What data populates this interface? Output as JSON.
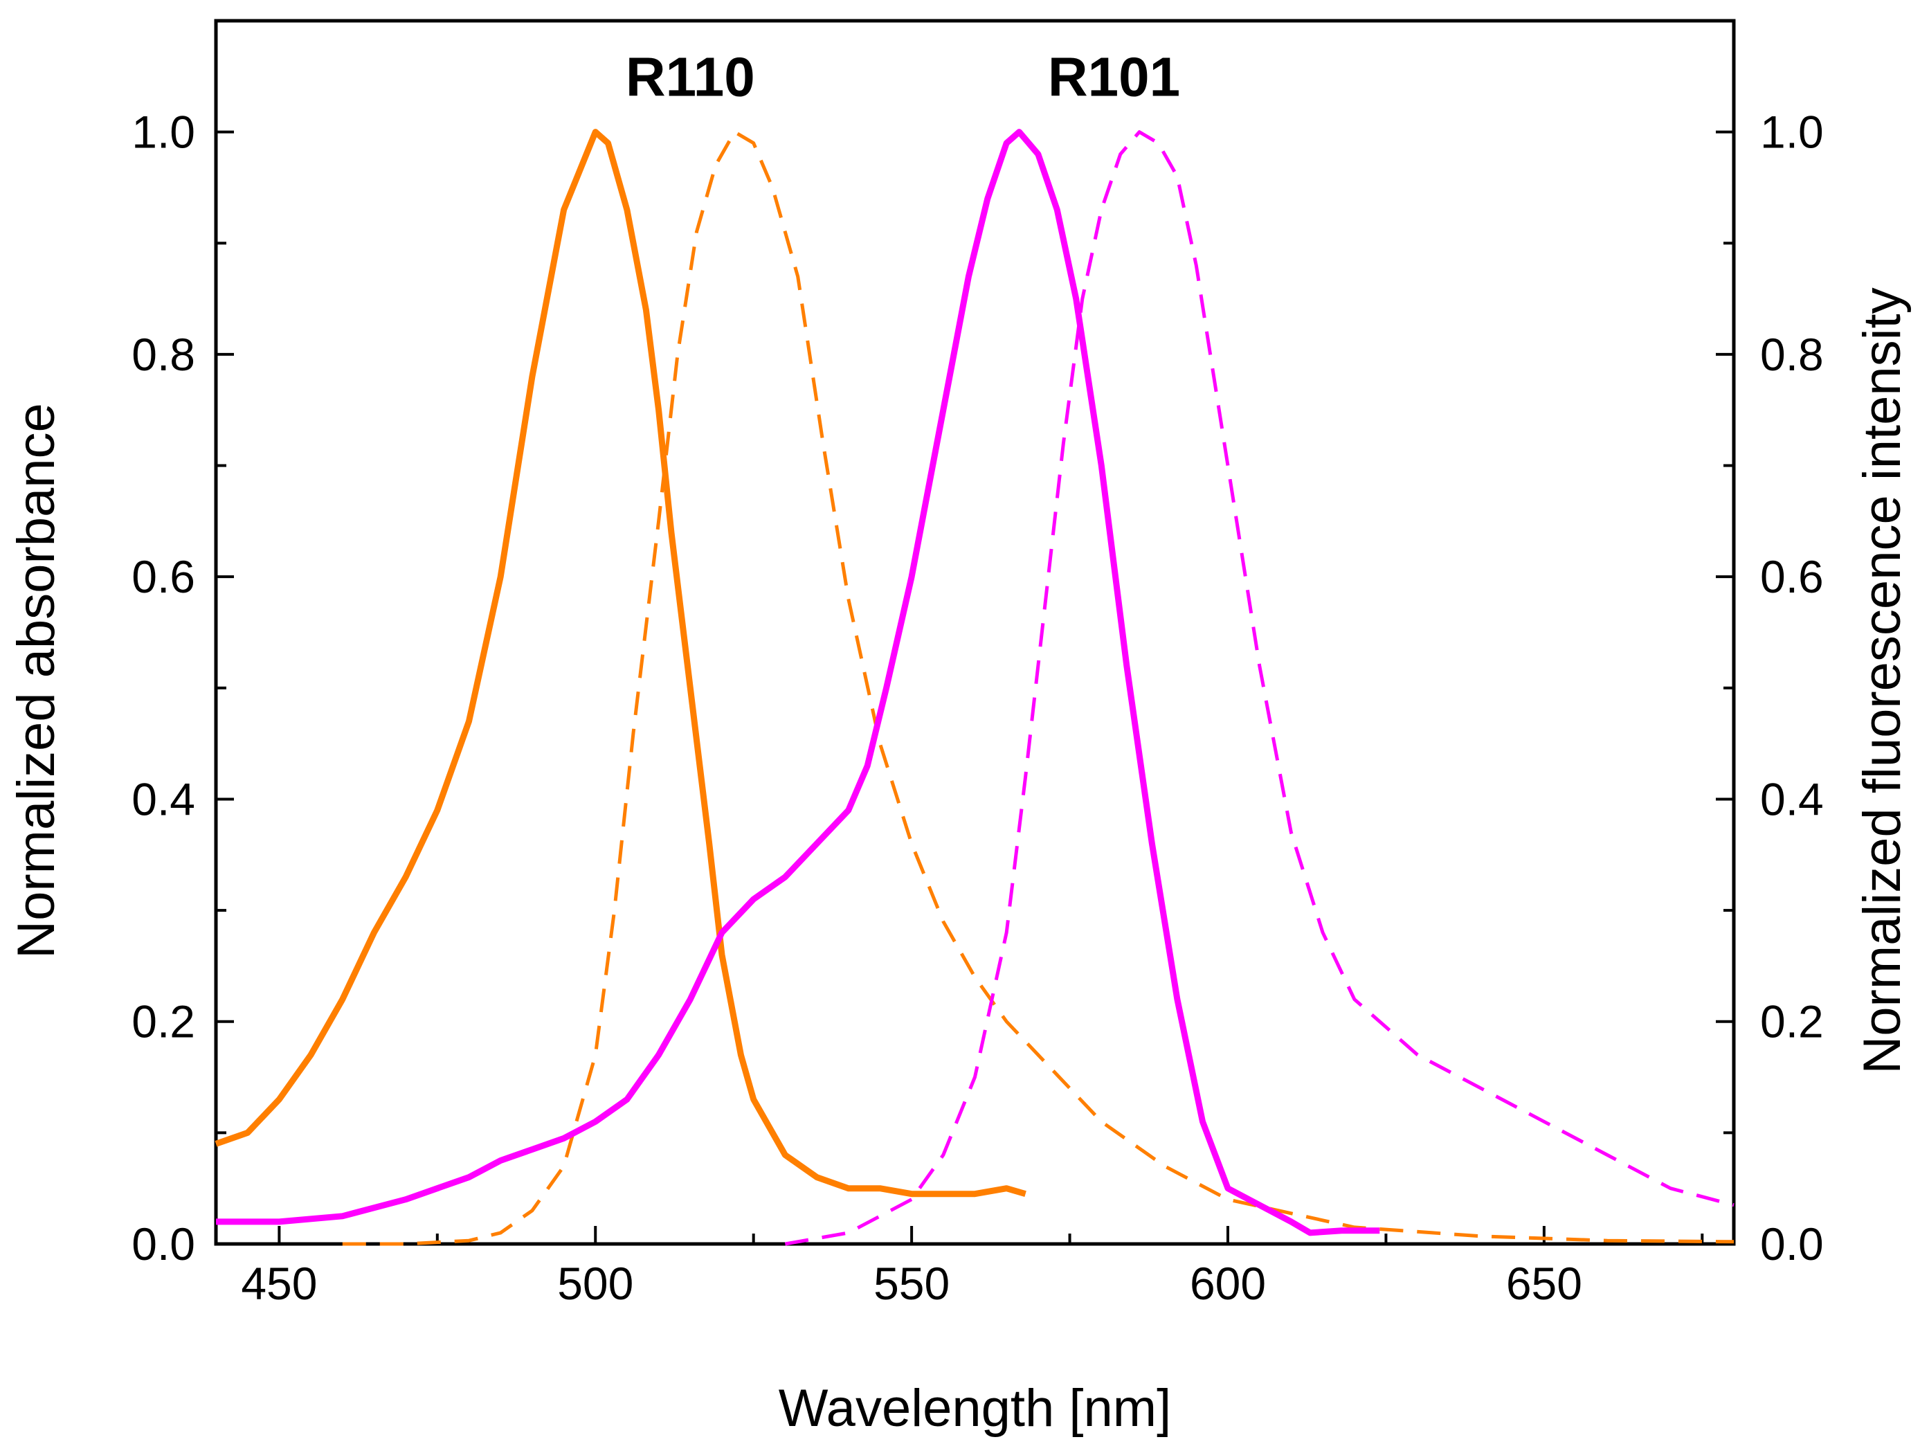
{
  "chart_data": {
    "type": "line",
    "xlabel": "Wavelength [nm]",
    "ylabel_left": "Normalized absorbance",
    "ylabel_right": "Normalized fluorescence intensity",
    "xlim": [
      440,
      680
    ],
    "ylim": [
      0,
      1.1
    ],
    "xticks": [
      450,
      500,
      550,
      600,
      650
    ],
    "xtick_labels": [
      "450",
      "500",
      "550",
      "600",
      "650"
    ],
    "yticks": [
      0.0,
      0.2,
      0.4,
      0.6,
      0.8,
      1.0
    ],
    "ytick_labels": [
      "0.0",
      "0.2",
      "0.4",
      "0.6",
      "0.8",
      "1.0"
    ],
    "y2tick_labels": [
      "0.0",
      "0.2",
      "0.4",
      "0.6",
      "0.8",
      "1.0"
    ],
    "annotations": [
      {
        "text": "R110",
        "x": 515,
        "y": 1.05
      },
      {
        "text": "R101",
        "x": 582,
        "y": 1.05
      }
    ],
    "series": [
      {
        "name": "R110 absorbance",
        "color": "#ff7f00",
        "style": "solid",
        "x": [
          440,
          445,
          450,
          455,
          460,
          465,
          470,
          475,
          480,
          485,
          490,
          495,
          500,
          502,
          505,
          508,
          510,
          512,
          515,
          518,
          520,
          523,
          525,
          530,
          535,
          540,
          545,
          550,
          555,
          560,
          565,
          568
        ],
        "y": [
          0.09,
          0.1,
          0.13,
          0.17,
          0.22,
          0.28,
          0.33,
          0.39,
          0.47,
          0.6,
          0.78,
          0.93,
          1.0,
          0.99,
          0.93,
          0.84,
          0.75,
          0.64,
          0.5,
          0.36,
          0.26,
          0.17,
          0.13,
          0.08,
          0.06,
          0.05,
          0.05,
          0.045,
          0.045,
          0.045,
          0.05,
          0.045
        ]
      },
      {
        "name": "R110 fluorescence",
        "color": "#ff7f00",
        "style": "dashed",
        "x": [
          460,
          470,
          480,
          485,
          490,
          495,
          500,
          503,
          506,
          510,
          513,
          516,
          519,
          522,
          525,
          528,
          532,
          536,
          540,
          545,
          550,
          555,
          560,
          565,
          570,
          580,
          590,
          600,
          620,
          640,
          660,
          680
        ],
        "y": [
          0.0,
          0.0,
          0.003,
          0.01,
          0.03,
          0.07,
          0.17,
          0.3,
          0.46,
          0.65,
          0.8,
          0.91,
          0.97,
          1.0,
          0.99,
          0.95,
          0.87,
          0.72,
          0.58,
          0.45,
          0.36,
          0.29,
          0.24,
          0.2,
          0.17,
          0.11,
          0.07,
          0.04,
          0.015,
          0.007,
          0.003,
          0.002
        ]
      },
      {
        "name": "R101 absorbance",
        "color": "#ff00ff",
        "style": "solid",
        "x": [
          440,
          450,
          460,
          470,
          480,
          485,
          490,
          495,
          500,
          505,
          510,
          515,
          520,
          525,
          530,
          535,
          540,
          543,
          546,
          550,
          553,
          556,
          559,
          562,
          565,
          567,
          570,
          573,
          576,
          580,
          584,
          588,
          592,
          596,
          600,
          605,
          610,
          613,
          618,
          624
        ],
        "y": [
          0.02,
          0.02,
          0.025,
          0.04,
          0.06,
          0.075,
          0.085,
          0.095,
          0.11,
          0.13,
          0.17,
          0.22,
          0.28,
          0.31,
          0.33,
          0.36,
          0.39,
          0.43,
          0.5,
          0.6,
          0.69,
          0.78,
          0.87,
          0.94,
          0.99,
          1.0,
          0.98,
          0.93,
          0.85,
          0.7,
          0.52,
          0.36,
          0.22,
          0.11,
          0.05,
          0.035,
          0.02,
          0.01,
          0.012,
          0.012
        ]
      },
      {
        "name": "R101 fluorescence",
        "color": "#ff00ff",
        "style": "dashed",
        "x": [
          530,
          540,
          550,
          555,
          560,
          565,
          568,
          571,
          574,
          577,
          580,
          583,
          586,
          589,
          592,
          595,
          600,
          605,
          610,
          615,
          620,
          630,
          640,
          650,
          660,
          670,
          680
        ],
        "y": [
          0.0,
          0.01,
          0.04,
          0.08,
          0.15,
          0.28,
          0.42,
          0.57,
          0.72,
          0.85,
          0.93,
          0.98,
          1.0,
          0.99,
          0.96,
          0.88,
          0.7,
          0.52,
          0.37,
          0.28,
          0.22,
          0.17,
          0.14,
          0.11,
          0.08,
          0.05,
          0.035
        ]
      }
    ]
  }
}
